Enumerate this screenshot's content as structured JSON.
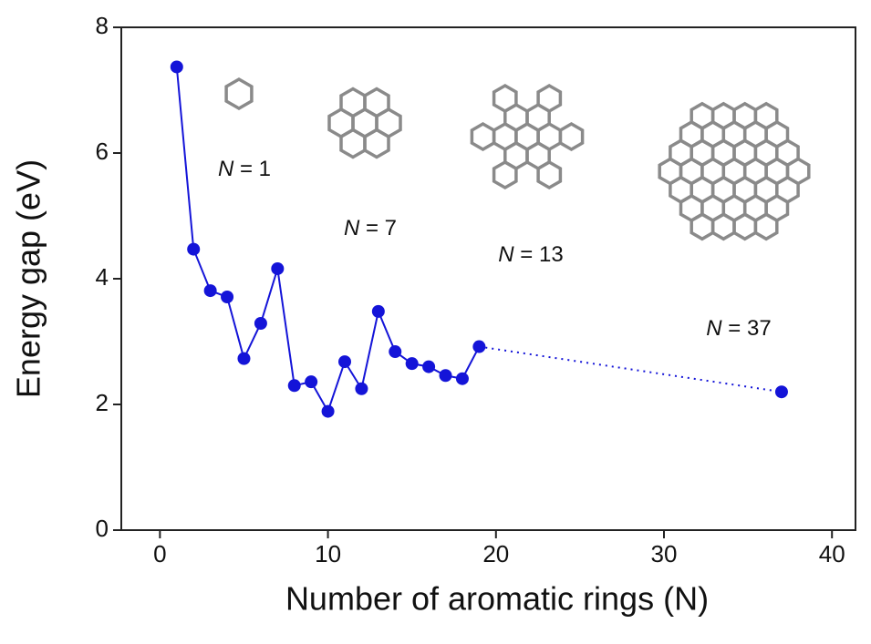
{
  "chart_data": {
    "type": "line",
    "x_label": "Number of aromatic rings (N)",
    "y_label": "Energy gap (eV)",
    "xlim": [
      -2.3,
      41.4
    ],
    "xticks": [
      0,
      10,
      20,
      30,
      40
    ],
    "ylim": [
      0,
      8
    ],
    "yticks": [
      0,
      2,
      4,
      6,
      8
    ],
    "series": [
      {
        "color": "#1414d8",
        "line_style": "solid",
        "x": [
          1,
          2,
          3,
          4,
          5,
          6,
          7,
          8,
          9,
          10,
          11,
          12,
          13,
          14,
          15,
          16,
          17,
          18,
          19
        ],
        "values": [
          7.37,
          4.47,
          3.81,
          3.71,
          2.73,
          3.29,
          4.16,
          2.3,
          2.36,
          1.89,
          2.68,
          2.25,
          3.48,
          2.84,
          2.65,
          2.6,
          2.46,
          2.41,
          2.92
        ]
      },
      {
        "color": "#1414d8",
        "line_style": "dotted",
        "x": [
          37
        ],
        "values": [
          2.2
        ]
      }
    ],
    "annotations": [
      "N = 1",
      "N = 7",
      "N = 13",
      "N = 37"
    ]
  }
}
